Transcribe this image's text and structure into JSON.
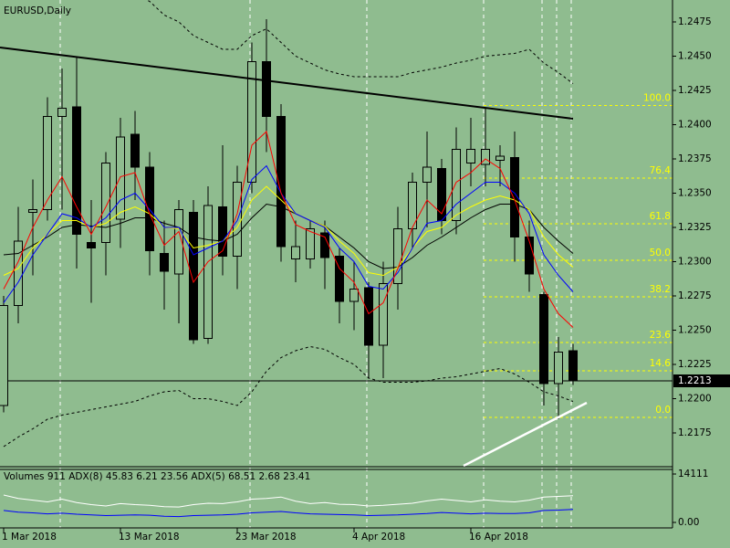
{
  "chart_data": {
    "type": "candlestick",
    "title": "EURUSD,Daily",
    "categories": [
      "1 Mar 2018",
      null,
      null,
      null,
      null,
      null,
      null,
      null,
      "13 Mar 2018",
      null,
      null,
      null,
      null,
      null,
      null,
      null,
      "23 Mar 2018",
      null,
      null,
      null,
      null,
      null,
      null,
      null,
      "4 Apr 2018",
      null,
      null,
      null,
      null,
      null,
      null,
      null,
      "16 Apr 2018",
      null,
      null,
      null,
      null,
      null,
      null,
      null
    ],
    "open": [
      1.2195,
      1.2268,
      1.2336,
      1.2338,
      1.2406,
      1.2413,
      1.2314,
      1.2314,
      1.2331,
      1.2393,
      1.2369,
      1.2306,
      1.2291,
      1.2336,
      1.2244,
      1.234,
      1.2304,
      1.2358,
      1.2446,
      1.2406,
      1.2302,
      1.2302,
      1.2321,
      1.2304,
      1.2271,
      1.2281,
      1.2239,
      1.2284,
      1.2324,
      1.2358,
      1.2368,
      1.233,
      1.2372,
      1.2371,
      1.2374,
      1.2376,
      1.2318,
      1.2276,
      1.2211,
      1.2235
    ],
    "high": [
      1.2275,
      1.234,
      1.236,
      1.242,
      1.2441,
      1.245,
      1.2345,
      1.238,
      1.2405,
      1.241,
      1.238,
      1.233,
      1.2345,
      1.2345,
      1.2355,
      1.2385,
      1.237,
      1.246,
      1.2477,
      1.2415,
      1.233,
      1.233,
      1.233,
      1.231,
      1.23,
      1.2285,
      1.23,
      1.234,
      1.2365,
      1.2395,
      1.2375,
      1.2398,
      1.2405,
      1.2412,
      1.2385,
      1.2395,
      1.233,
      1.2278,
      1.2245,
      1.224
    ],
    "low": [
      1.219,
      1.2255,
      1.229,
      1.233,
      1.2338,
      1.2295,
      1.227,
      1.229,
      1.231,
      1.2345,
      1.229,
      1.2265,
      1.2255,
      1.224,
      1.224,
      1.229,
      1.228,
      1.235,
      1.238,
      1.23,
      1.2285,
      1.2295,
      1.228,
      1.2255,
      1.225,
      1.2215,
      1.2215,
      1.2265,
      1.231,
      1.2325,
      1.232,
      1.232,
      1.2355,
      1.2355,
      1.2355,
      1.23,
      1.2278,
      1.2195,
      1.2185,
      1.221
    ],
    "close": [
      1.2268,
      1.2315,
      1.2338,
      1.2406,
      1.2412,
      1.232,
      1.231,
      1.2372,
      1.2391,
      1.2369,
      1.2308,
      1.2293,
      1.2338,
      1.2243,
      1.2341,
      1.2304,
      1.2358,
      1.2446,
      1.2406,
      1.2311,
      1.2311,
      1.2324,
      1.2303,
      1.2271,
      1.228,
      1.2239,
      1.2284,
      1.2324,
      1.2358,
      1.2369,
      1.233,
      1.2382,
      1.2382,
      1.2382,
      1.2377,
      1.2318,
      1.2291,
      1.2211,
      1.2234,
      1.2213
    ],
    "ylim": [
      1.2151,
      1.2491
    ],
    "yticks": [
      1.2475,
      {
        "value": 1.245,
        "label": "1.2450"
      },
      1.2425,
      {
        "value": 1.24,
        "label": "1.2400"
      },
      1.2375,
      {
        "value": 1.235,
        "label": "1.2350"
      },
      1.2325,
      {
        "value": 1.23,
        "label": "1.2300"
      },
      1.2275,
      {
        "value": 1.225,
        "label": "1.2250"
      },
      1.2225,
      {
        "value": 1.22,
        "label": "1.2200"
      },
      1.2175
    ],
    "last_price": 1.2213,
    "overlays": [
      {
        "color": "#000000",
        "values": [
          1.2305,
          1.2306,
          1.2312,
          1.2318,
          1.2325,
          1.2327,
          1.2326,
          1.2325,
          1.2328,
          1.2332,
          1.2332,
          1.2328,
          1.2325,
          1.2318,
          1.2316,
          1.2315,
          1.232,
          1.2332,
          1.2342,
          1.234,
          1.2335,
          1.233,
          1.2326,
          1.2318,
          1.231,
          1.23,
          1.2295,
          1.2296,
          1.2303,
          1.2312,
          1.2318,
          1.2325,
          1.2332,
          1.2338,
          1.2342,
          1.2342,
          1.2338,
          1.2325,
          1.2315,
          1.2306
        ]
      },
      {
        "color": "#ffff00",
        "values": [
          1.229,
          1.2295,
          1.231,
          1.232,
          1.233,
          1.233,
          1.2325,
          1.2328,
          1.2336,
          1.234,
          1.2335,
          1.2325,
          1.2324,
          1.231,
          1.2312,
          1.2315,
          1.2325,
          1.2345,
          1.2355,
          1.2345,
          1.2335,
          1.233,
          1.2326,
          1.2315,
          1.2306,
          1.2292,
          1.229,
          1.2296,
          1.231,
          1.2322,
          1.2325,
          1.2334,
          1.234,
          1.2345,
          1.2348,
          1.2345,
          1.2338,
          1.2318,
          1.2305,
          1.2296
        ]
      },
      {
        "color": "#0000ff",
        "values": [
          1.227,
          1.2285,
          1.2305,
          1.232,
          1.2335,
          1.2332,
          1.2325,
          1.2332,
          1.2345,
          1.235,
          1.2338,
          1.2325,
          1.2325,
          1.2305,
          1.231,
          1.2315,
          1.233,
          1.236,
          1.237,
          1.235,
          1.2335,
          1.233,
          1.2325,
          1.231,
          1.23,
          1.2282,
          1.228,
          1.2292,
          1.231,
          1.2328,
          1.233,
          1.2342,
          1.235,
          1.2358,
          1.2358,
          1.235,
          1.2335,
          1.2305,
          1.229,
          1.2278
        ]
      },
      {
        "color": "#ff0000",
        "values": [
          1.228,
          1.23,
          1.2325,
          1.2345,
          1.2362,
          1.234,
          1.232,
          1.234,
          1.2362,
          1.2365,
          1.2335,
          1.2312,
          1.2322,
          1.2285,
          1.23,
          1.2308,
          1.2335,
          1.2385,
          1.2395,
          1.235,
          1.2327,
          1.2322,
          1.2318,
          1.2295,
          1.2285,
          1.2262,
          1.227,
          1.2295,
          1.2325,
          1.2345,
          1.2335,
          1.2358,
          1.2365,
          1.2375,
          1.2368,
          1.2345,
          1.2315,
          1.228,
          1.2262,
          1.2252
        ]
      }
    ],
    "bands": [
      {
        "color": "#000000",
        "dashed": true,
        "values": [
          1.256,
          1.2555,
          1.2545,
          1.2535,
          1.253,
          1.252,
          1.251,
          1.2505,
          1.25,
          1.2495,
          1.249,
          1.248,
          1.2475,
          1.2465,
          1.246,
          1.2455,
          1.2455,
          1.2465,
          1.247,
          1.246,
          1.245,
          1.2445,
          1.244,
          1.2437,
          1.2435,
          1.2435,
          1.2435,
          1.2435,
          1.2438,
          1.244,
          1.2442,
          1.2445,
          1.2447,
          1.245,
          1.2451,
          1.2452,
          1.2455,
          1.2445,
          1.2438,
          1.243
        ]
      },
      {
        "color": "#000000",
        "dashed": true,
        "values": [
          1.2165,
          1.2172,
          1.2178,
          1.2185,
          1.2188,
          1.219,
          1.2192,
          1.2194,
          1.2196,
          1.2198,
          1.2202,
          1.2205,
          1.2206,
          1.22,
          1.22,
          1.2198,
          1.2195,
          1.2205,
          1.222,
          1.223,
          1.2235,
          1.2238,
          1.2236,
          1.223,
          1.2225,
          1.2215,
          1.2212,
          1.2212,
          1.2212,
          1.2213,
          1.2215,
          1.2216,
          1.2218,
          1.222,
          1.2222,
          1.2218,
          1.2212,
          1.2205,
          1.2202,
          1.2198
        ]
      }
    ],
    "fibonacci": {
      "color": "#ffff00",
      "levels": [
        {
          "value": 1.2414,
          "label": "100.0"
        },
        {
          "value": 1.2361,
          "label": "76.4"
        },
        {
          "value": 1.23277,
          "label": "61.8"
        },
        {
          "value": 1.2301,
          "label": "50.0"
        },
        {
          "value": 1.22743,
          "label": "38.2"
        },
        {
          "value": 1.2241,
          "label": "23.6"
        },
        {
          "value": 1.22203,
          "label": "14.6"
        },
        {
          "value": 1.21863,
          "label": "0.0"
        }
      ]
    },
    "panel": {
      "type": "line",
      "title": "Volumes 911 ADX(8) 45.83 6.21 23.56 ADX(5) 68.51 2.68 23.41",
      "ylim": [
        0,
        14111
      ],
      "yticks": [
        14111,
        {
          "value": 0,
          "label": "0.00"
        }
      ],
      "series": [
        {
          "color": "#ffffff",
          "values": [
            8000,
            7000,
            6500,
            6000,
            6800,
            5800,
            5200,
            4800,
            5500,
            5200,
            5000,
            4600,
            4500,
            5200,
            5600,
            5500,
            6000,
            6800,
            7000,
            7400,
            6200,
            5500,
            5800,
            5300,
            5200,
            4800,
            5000,
            5300,
            5600,
            6300,
            6800,
            6400,
            6000,
            6600,
            6200,
            6000,
            6500,
            7400,
            7600,
            7800
          ]
        },
        {
          "color": "#0000ff",
          "values": [
            3500,
            3000,
            2800,
            2500,
            2700,
            2400,
            2200,
            2000,
            2100,
            2200,
            2100,
            1800,
            1700,
            2000,
            2100,
            2200,
            2400,
            2800,
            3000,
            3200,
            2800,
            2500,
            2400,
            2300,
            2200,
            2000,
            2100,
            2200,
            2400,
            2600,
            2900,
            2700,
            2500,
            2700,
            2600,
            2600,
            2800,
            3500,
            3600,
            3800
          ]
        }
      ]
    }
  }
}
